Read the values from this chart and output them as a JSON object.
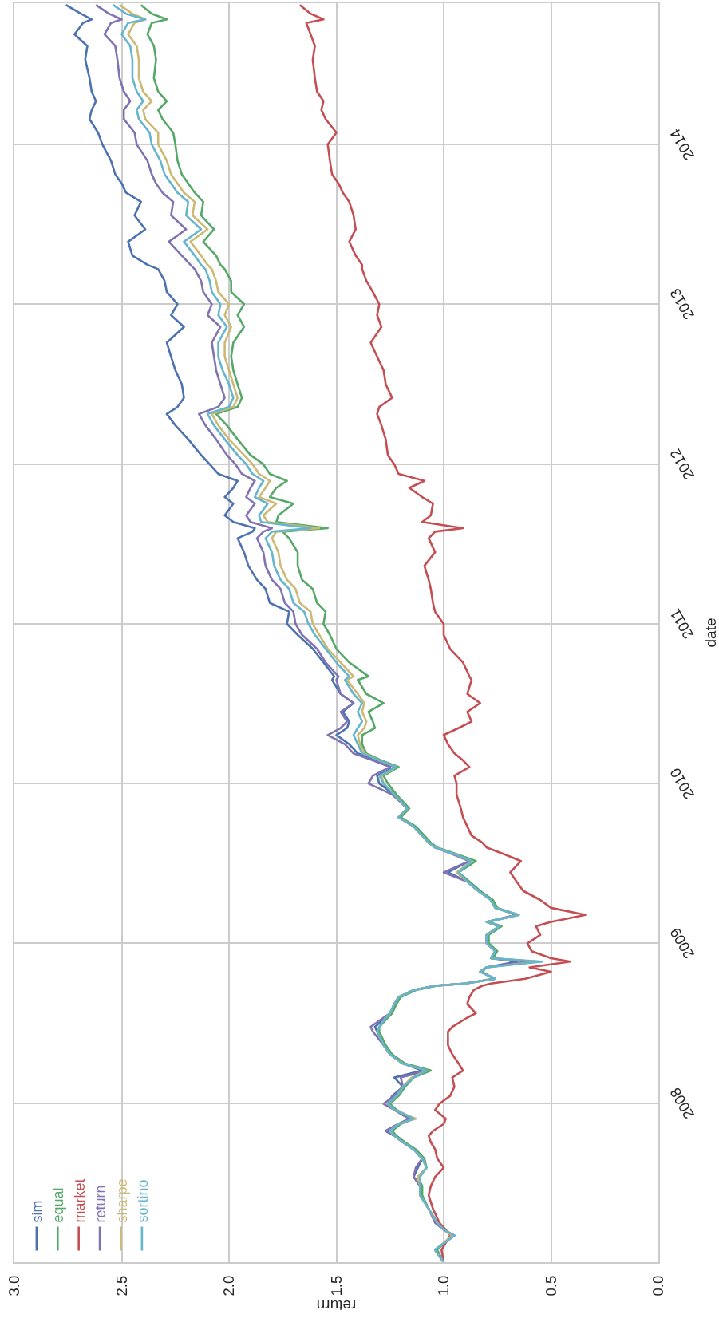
{
  "chart_data": {
    "type": "line",
    "orientation": "horizontal",
    "xlabel": "return",
    "ylabel": "date",
    "x": [
      "2007-01-03",
      "2007-01-31",
      "2007-03-05",
      "2007-03-18",
      "2007-04-03",
      "2007-05-05",
      "2007-06-05",
      "2007-06-26",
      "2007-07-17",
      "2007-08-07",
      "2007-08-28",
      "2007-09-18",
      "2007-10-04",
      "2007-10-19",
      "2007-10-30",
      "2007-11-15",
      "2007-11-27",
      "2007-12-17",
      "2007-12-31",
      "2008-01-18",
      "2008-02-08",
      "2008-02-29",
      "2008-03-16",
      "2008-04-01",
      "2008-04-22",
      "2008-05-13",
      "2008-06-13",
      "2008-06-24",
      "2008-07-15",
      "2008-07-25",
      "2008-08-15",
      "2008-08-31",
      "2008-09-16",
      "2008-09-26",
      "2008-10-01",
      "2008-10-12",
      "2008-10-28",
      "2008-11-07",
      "2008-11-20",
      "2008-11-28",
      "2008-12-14",
      "2009-01-01",
      "2009-01-20",
      "2009-02-09",
      "2009-02-19",
      "2009-03-07",
      "2009-03-23",
      "2009-04-10",
      "2009-05-01",
      "2009-05-22",
      "2009-06-12",
      "2009-07-08",
      "2009-07-24",
      "2009-08-08",
      "2009-08-19",
      "2009-09-04",
      "2009-09-25",
      "2009-10-16",
      "2009-11-05",
      "2009-12-07",
      "2010-01-01",
      "2010-01-19",
      "2010-02-08",
      "2010-02-23",
      "2010-03-11",
      "2010-04-01",
      "2010-04-22",
      "2010-05-08",
      "2010-05-23",
      "2010-06-14",
      "2010-07-04",
      "2010-07-25",
      "2010-08-26",
      "2010-09-03",
      "2010-10-05",
      "2010-11-05",
      "2010-12-07",
      "2011-01-01",
      "2011-01-29",
      "2011-02-18",
      "2011-03-22",
      "2011-04-12",
      "2011-05-14",
      "2011-06-14",
      "2011-07-16",
      "2011-07-31",
      "2011-08-08",
      "2011-08-22",
      "2011-09-06",
      "2011-10-03",
      "2011-10-18",
      "2011-11-08",
      "2011-11-24",
      "2011-12-10",
      "2012-01-01",
      "2012-01-22",
      "2012-02-27",
      "2012-03-30",
      "2012-04-25",
      "2012-05-11",
      "2012-06-01",
      "2012-07-02",
      "2012-08-03",
      "2012-09-03",
      "2012-10-05",
      "2012-11-10",
      "2012-12-07",
      "2013-01-01",
      "2013-01-29",
      "2013-02-23",
      "2013-03-22",
      "2013-04-01",
      "2013-04-22",
      "2013-05-24",
      "2013-06-21",
      "2013-07-23",
      "2013-08-23",
      "2013-09-13",
      "2013-10-04",
      "2013-10-25",
      "2013-11-25",
      "2014-01-01",
      "2014-01-28",
      "2014-02-28",
      "2014-03-21",
      "2014-04-10",
      "2014-05-02",
      "2014-06-02",
      "2014-07-14",
      "2014-08-14",
      "2014-09-10",
      "2014-10-06",
      "2014-10-14",
      "2014-10-27",
      "2014-11-16"
    ],
    "series": [
      {
        "name": "sim",
        "color": "#4c72b0",
        "values": [
          1.0,
          1.04,
          0.95,
          1.0,
          1.03,
          1.07,
          1.11,
          1.11,
          1.14,
          1.12,
          1.1,
          1.14,
          1.19,
          1.23,
          1.27,
          1.21,
          1.16,
          1.23,
          1.26,
          1.24,
          1.19,
          1.23,
          1.1,
          1.19,
          1.25,
          1.28,
          1.31,
          1.32,
          1.27,
          1.25,
          1.23,
          1.21,
          1.14,
          1.04,
          0.9,
          0.76,
          0.83,
          0.8,
          0.66,
          0.78,
          0.76,
          0.8,
          0.8,
          0.74,
          0.8,
          0.66,
          0.76,
          0.78,
          0.84,
          0.89,
          0.98,
          0.88,
          0.95,
          1.04,
          1.07,
          1.1,
          1.14,
          1.21,
          1.17,
          1.23,
          1.3,
          1.31,
          1.23,
          1.31,
          1.4,
          1.44,
          1.5,
          1.45,
          1.44,
          1.47,
          1.42,
          1.48,
          1.52,
          1.51,
          1.56,
          1.61,
          1.68,
          1.73,
          1.72,
          1.81,
          1.83,
          1.87,
          1.91,
          1.93,
          1.96,
          1.89,
          1.88,
          1.98,
          2.02,
          1.98,
          2.02,
          1.98,
          1.96,
          2.05,
          2.09,
          2.13,
          2.19,
          2.25,
          2.29,
          2.24,
          2.21,
          2.22,
          2.25,
          2.27,
          2.29,
          2.21,
          2.27,
          2.24,
          2.29,
          2.3,
          2.33,
          2.38,
          2.45,
          2.47,
          2.39,
          2.44,
          2.41,
          2.48,
          2.5,
          2.53,
          2.55,
          2.59,
          2.61,
          2.65,
          2.64,
          2.62,
          2.64,
          2.65,
          2.67,
          2.66,
          2.72,
          2.68,
          2.64,
          2.69,
          2.76
        ]
      },
      {
        "name": "equal",
        "color": "#55a868",
        "values": [
          1.0,
          1.03,
          0.96,
          1.0,
          1.03,
          1.07,
          1.1,
          1.1,
          1.12,
          1.08,
          1.09,
          1.13,
          1.18,
          1.22,
          1.24,
          1.2,
          1.14,
          1.22,
          1.25,
          1.21,
          1.18,
          1.14,
          1.06,
          1.18,
          1.24,
          1.27,
          1.3,
          1.3,
          1.26,
          1.24,
          1.22,
          1.2,
          1.13,
          1.03,
          0.9,
          0.77,
          0.82,
          0.8,
          0.58,
          0.77,
          0.75,
          0.79,
          0.79,
          0.73,
          0.79,
          0.65,
          0.75,
          0.77,
          0.83,
          0.88,
          0.93,
          0.85,
          0.94,
          1.03,
          1.06,
          1.09,
          1.13,
          1.2,
          1.16,
          1.22,
          1.26,
          1.28,
          1.21,
          1.29,
          1.36,
          1.38,
          1.38,
          1.32,
          1.33,
          1.35,
          1.28,
          1.36,
          1.4,
          1.35,
          1.44,
          1.5,
          1.53,
          1.56,
          1.55,
          1.59,
          1.61,
          1.66,
          1.68,
          1.68,
          1.72,
          1.75,
          1.54,
          1.78,
          1.77,
          1.7,
          1.81,
          1.78,
          1.73,
          1.81,
          1.84,
          1.9,
          1.96,
          2.01,
          2.06,
          1.96,
          1.94,
          1.96,
          1.98,
          1.99,
          1.98,
          1.93,
          1.96,
          1.93,
          1.99,
          1.99,
          2.02,
          2.04,
          2.06,
          2.12,
          2.07,
          2.13,
          2.12,
          2.16,
          2.19,
          2.22,
          2.24,
          2.25,
          2.26,
          2.31,
          2.33,
          2.29,
          2.33,
          2.35,
          2.34,
          2.35,
          2.38,
          2.36,
          2.29,
          2.36,
          2.41
        ]
      },
      {
        "name": "market",
        "color": "#c44e52",
        "values": [
          1.0,
          1.01,
          0.97,
          0.99,
          1.02,
          1.05,
          1.07,
          1.06,
          1.04,
          1.0,
          1.03,
          1.04,
          1.06,
          1.07,
          1.05,
          1.0,
          0.99,
          1.04,
          1.02,
          0.97,
          0.95,
          0.96,
          0.91,
          0.93,
          0.96,
          0.98,
          0.98,
          0.96,
          0.89,
          0.85,
          0.89,
          0.88,
          0.86,
          0.82,
          0.78,
          0.62,
          0.5,
          0.6,
          0.41,
          0.5,
          0.59,
          0.61,
          0.55,
          0.57,
          0.5,
          0.34,
          0.5,
          0.55,
          0.63,
          0.66,
          0.69,
          0.64,
          0.72,
          0.8,
          0.82,
          0.87,
          0.89,
          0.91,
          0.92,
          0.94,
          0.94,
          0.95,
          0.88,
          0.91,
          0.95,
          0.98,
          1.0,
          0.93,
          0.87,
          0.89,
          0.83,
          0.89,
          0.87,
          0.88,
          0.91,
          0.97,
          1.0,
          1.0,
          1.04,
          1.05,
          1.06,
          1.07,
          1.09,
          1.04,
          1.07,
          1.04,
          0.91,
          1.1,
          1.06,
          1.05,
          1.1,
          1.16,
          1.09,
          1.21,
          1.23,
          1.26,
          1.27,
          1.29,
          1.31,
          1.3,
          1.24,
          1.27,
          1.28,
          1.31,
          1.34,
          1.29,
          1.31,
          1.3,
          1.33,
          1.36,
          1.38,
          1.38,
          1.41,
          1.44,
          1.41,
          1.42,
          1.44,
          1.47,
          1.49,
          1.52,
          1.53,
          1.54,
          1.5,
          1.55,
          1.57,
          1.56,
          1.59,
          1.6,
          1.61,
          1.6,
          1.62,
          1.64,
          1.56,
          1.62,
          1.67
        ]
      },
      {
        "name": "return",
        "color": "#8172b2",
        "values": [
          1.0,
          1.04,
          0.95,
          1.0,
          1.04,
          1.07,
          1.11,
          1.11,
          1.14,
          1.13,
          1.1,
          1.14,
          1.19,
          1.23,
          1.27,
          1.21,
          1.16,
          1.23,
          1.28,
          1.23,
          1.19,
          1.2,
          1.08,
          1.19,
          1.25,
          1.28,
          1.33,
          1.34,
          1.28,
          1.25,
          1.23,
          1.21,
          1.14,
          1.04,
          0.9,
          0.76,
          0.83,
          0.8,
          0.62,
          0.78,
          0.76,
          0.8,
          0.8,
          0.74,
          0.8,
          0.66,
          0.76,
          0.78,
          0.84,
          0.89,
          1.0,
          0.88,
          0.96,
          1.04,
          1.07,
          1.1,
          1.14,
          1.21,
          1.17,
          1.24,
          1.35,
          1.33,
          1.25,
          1.33,
          1.42,
          1.46,
          1.54,
          1.48,
          1.45,
          1.48,
          1.42,
          1.48,
          1.5,
          1.49,
          1.55,
          1.59,
          1.66,
          1.69,
          1.7,
          1.74,
          1.76,
          1.8,
          1.83,
          1.84,
          1.87,
          1.84,
          1.8,
          1.9,
          1.92,
          1.88,
          1.92,
          1.9,
          1.88,
          1.94,
          1.97,
          2.01,
          2.06,
          2.11,
          2.14,
          2.05,
          2.02,
          2.04,
          2.06,
          2.07,
          2.08,
          2.04,
          2.1,
          2.08,
          2.12,
          2.13,
          2.16,
          2.18,
          2.22,
          2.28,
          2.2,
          2.27,
          2.26,
          2.31,
          2.34,
          2.36,
          2.38,
          2.43,
          2.44,
          2.49,
          2.49,
          2.46,
          2.49,
          2.51,
          2.52,
          2.53,
          2.58,
          2.55,
          2.5,
          2.56,
          2.62
        ]
      },
      {
        "name": "sharpe",
        "color": "#ccb974",
        "values": [
          1.0,
          1.04,
          0.96,
          1.0,
          1.03,
          1.07,
          1.11,
          1.11,
          1.12,
          1.08,
          1.1,
          1.14,
          1.19,
          1.23,
          1.25,
          1.21,
          1.13,
          1.23,
          1.26,
          1.22,
          1.19,
          1.15,
          1.08,
          1.19,
          1.25,
          1.28,
          1.31,
          1.3,
          1.27,
          1.25,
          1.23,
          1.21,
          1.14,
          1.04,
          0.9,
          0.76,
          0.83,
          0.8,
          0.56,
          0.78,
          0.76,
          0.8,
          0.8,
          0.74,
          0.8,
          0.65,
          0.76,
          0.78,
          0.84,
          0.89,
          0.94,
          0.87,
          0.95,
          1.04,
          1.07,
          1.1,
          1.14,
          1.21,
          1.17,
          1.23,
          1.28,
          1.29,
          1.22,
          1.3,
          1.37,
          1.39,
          1.4,
          1.37,
          1.36,
          1.38,
          1.37,
          1.4,
          1.45,
          1.42,
          1.48,
          1.54,
          1.58,
          1.61,
          1.62,
          1.67,
          1.69,
          1.73,
          1.76,
          1.77,
          1.8,
          1.78,
          1.58,
          1.82,
          1.84,
          1.78,
          1.86,
          1.83,
          1.81,
          1.86,
          1.89,
          1.93,
          2.0,
          2.05,
          2.08,
          1.98,
          1.96,
          1.98,
          2.0,
          2.02,
          2.02,
          1.99,
          2.02,
          2.0,
          2.05,
          2.06,
          2.08,
          2.1,
          2.13,
          2.18,
          2.1,
          2.17,
          2.16,
          2.21,
          2.24,
          2.27,
          2.29,
          2.33,
          2.33,
          2.39,
          2.4,
          2.36,
          2.4,
          2.42,
          2.42,
          2.43,
          2.47,
          2.44,
          2.39,
          2.45,
          2.51
        ]
      },
      {
        "name": "sortino",
        "color": "#64b5cd",
        "values": [
          1.0,
          1.04,
          0.95,
          1.0,
          1.03,
          1.07,
          1.11,
          1.11,
          1.11,
          1.08,
          1.1,
          1.14,
          1.19,
          1.23,
          1.25,
          1.21,
          1.14,
          1.23,
          1.26,
          1.22,
          1.19,
          1.14,
          1.08,
          1.19,
          1.25,
          1.28,
          1.31,
          1.3,
          1.27,
          1.25,
          1.23,
          1.21,
          1.14,
          1.04,
          0.9,
          0.76,
          0.83,
          0.8,
          0.54,
          0.78,
          0.76,
          0.8,
          0.8,
          0.74,
          0.8,
          0.65,
          0.76,
          0.78,
          0.84,
          0.89,
          0.93,
          0.87,
          0.95,
          1.04,
          1.07,
          1.1,
          1.14,
          1.21,
          1.17,
          1.23,
          1.28,
          1.3,
          1.22,
          1.3,
          1.38,
          1.4,
          1.42,
          1.4,
          1.38,
          1.4,
          1.38,
          1.42,
          1.46,
          1.44,
          1.5,
          1.55,
          1.6,
          1.63,
          1.65,
          1.7,
          1.72,
          1.76,
          1.79,
          1.8,
          1.83,
          1.8,
          1.62,
          1.85,
          1.86,
          1.82,
          1.88,
          1.86,
          1.84,
          1.89,
          1.92,
          1.96,
          2.02,
          2.07,
          2.1,
          2.0,
          1.98,
          2.0,
          2.03,
          2.05,
          2.05,
          2.01,
          2.05,
          2.04,
          2.08,
          2.09,
          2.11,
          2.13,
          2.16,
          2.21,
          2.13,
          2.2,
          2.19,
          2.24,
          2.27,
          2.3,
          2.32,
          2.36,
          2.37,
          2.42,
          2.43,
          2.4,
          2.43,
          2.45,
          2.45,
          2.46,
          2.5,
          2.47,
          2.39,
          2.48,
          2.54
        ]
      }
    ],
    "xlim": [
      3,
      0
    ],
    "xticks": [
      {
        "value": 3,
        "label": "3.0"
      },
      2.5,
      {
        "value": 2,
        "label": "2.0"
      },
      1.5,
      {
        "value": 1,
        "label": "1.0"
      },
      0.5,
      {
        "value": 0,
        "label": "0.0"
      }
    ],
    "ylim": [
      "2007-01-03",
      "2014-11-20"
    ],
    "yticks": [
      "2008",
      "2009",
      "2010",
      "2011",
      "2012",
      "2013",
      "2014"
    ],
    "grid": true,
    "legend": "bottom left",
    "line_style": "solid"
  }
}
